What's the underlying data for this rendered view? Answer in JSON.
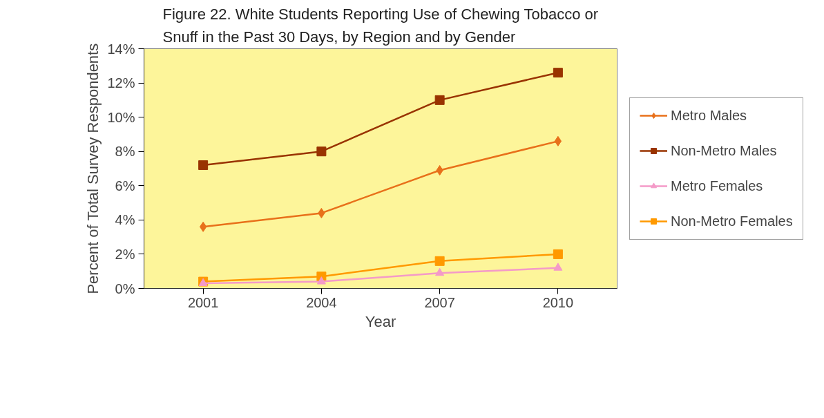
{
  "chart_data": {
    "type": "line",
    "title": "Figure 22. White Students Reporting Use of Chewing Tobacco or Snuff in the Past 30 Days, by Region and by Gender",
    "xlabel": "Year",
    "ylabel": "Percent of Total Survey Respondents",
    "categories": [
      "2001",
      "2004",
      "2007",
      "2010"
    ],
    "series": [
      {
        "name": "Metro Males",
        "color": "#e8701a",
        "marker": "diamond",
        "values": [
          3.6,
          4.4,
          6.9,
          8.6
        ]
      },
      {
        "name": "Non-Metro Males",
        "color": "#993300",
        "marker": "square",
        "values": [
          7.2,
          8.0,
          11.0,
          12.6
        ]
      },
      {
        "name": "Metro Females",
        "color": "#f49ac8",
        "marker": "triangle",
        "values": [
          0.3,
          0.4,
          0.9,
          1.2
        ]
      },
      {
        "name": "Non-Metro Females",
        "color": "#ff9900",
        "marker": "square",
        "values": [
          0.4,
          0.7,
          1.6,
          2.0
        ]
      }
    ],
    "ylim": [
      0,
      14
    ],
    "yticks": [
      {
        "value": 0,
        "label": "0%"
      },
      {
        "value": 2,
        "label": "2%"
      },
      {
        "value": 4,
        "label": "4%"
      },
      {
        "value": 6,
        "label": "6%"
      },
      {
        "value": 8,
        "label": "8%"
      },
      {
        "value": 10,
        "label": "10%"
      },
      {
        "value": 12,
        "label": "12%"
      },
      {
        "value": 14,
        "label": "14%"
      }
    ],
    "grid": false,
    "legend": "right",
    "line_style": "solid"
  }
}
